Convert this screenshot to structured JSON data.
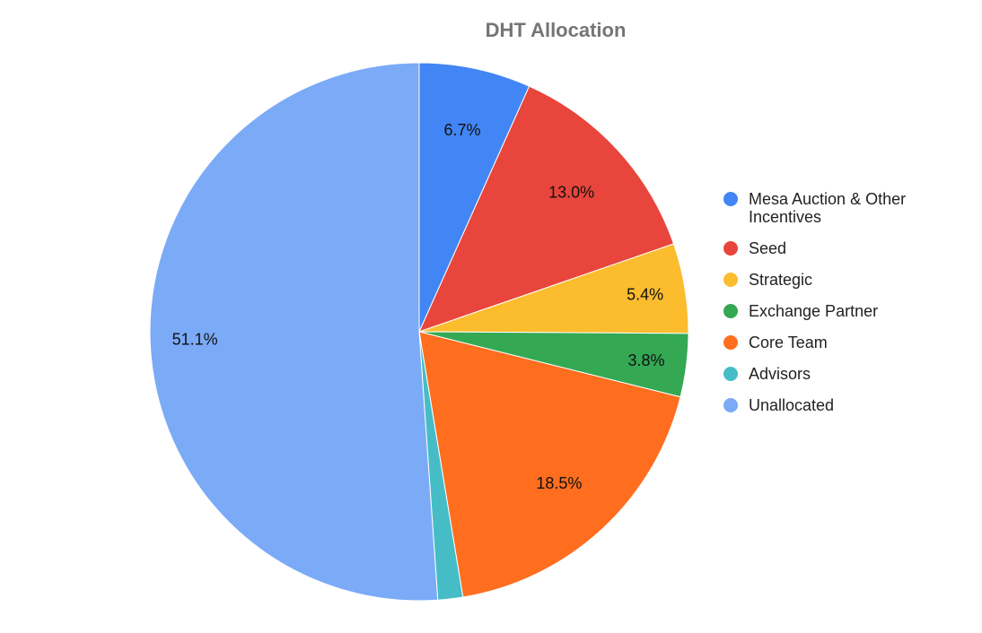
{
  "chart_data": {
    "type": "pie",
    "title": "DHT Allocation",
    "legend_position": "right",
    "slices": [
      {
        "label": "Mesa Auction & Other Incentives",
        "value": 6.7,
        "display": "6.7%",
        "color": "#4285F4"
      },
      {
        "label": "Seed",
        "value": 13.0,
        "display": "13.0%",
        "color": "#E8453C"
      },
      {
        "label": "Strategic",
        "value": 5.4,
        "display": "5.4%",
        "color": "#FBBC2E"
      },
      {
        "label": "Exchange Partner",
        "value": 3.8,
        "display": "3.8%",
        "color": "#34A853"
      },
      {
        "label": "Core Team",
        "value": 18.5,
        "display": "18.5%",
        "color": "#FF6D1F"
      },
      {
        "label": "Advisors",
        "value": 1.5,
        "display": "",
        "color": "#46BDC6"
      },
      {
        "label": "Unallocated",
        "value": 51.1,
        "display": "51.1%",
        "color": "#7BAAF7"
      }
    ],
    "legend": [
      {
        "lines": [
          "Mesa Auction & Other",
          "Incentives"
        ],
        "color": "#4285F4"
      },
      {
        "lines": [
          "Seed"
        ],
        "color": "#E8453C"
      },
      {
        "lines": [
          "Strategic"
        ],
        "color": "#FBBC2E"
      },
      {
        "lines": [
          "Exchange Partner"
        ],
        "color": "#34A853"
      },
      {
        "lines": [
          "Core Team"
        ],
        "color": "#FF6D1F"
      },
      {
        "lines": [
          "Advisors"
        ],
        "color": "#46BDC6"
      },
      {
        "lines": [
          "Unallocated"
        ],
        "color": "#7BAAF7"
      }
    ]
  }
}
